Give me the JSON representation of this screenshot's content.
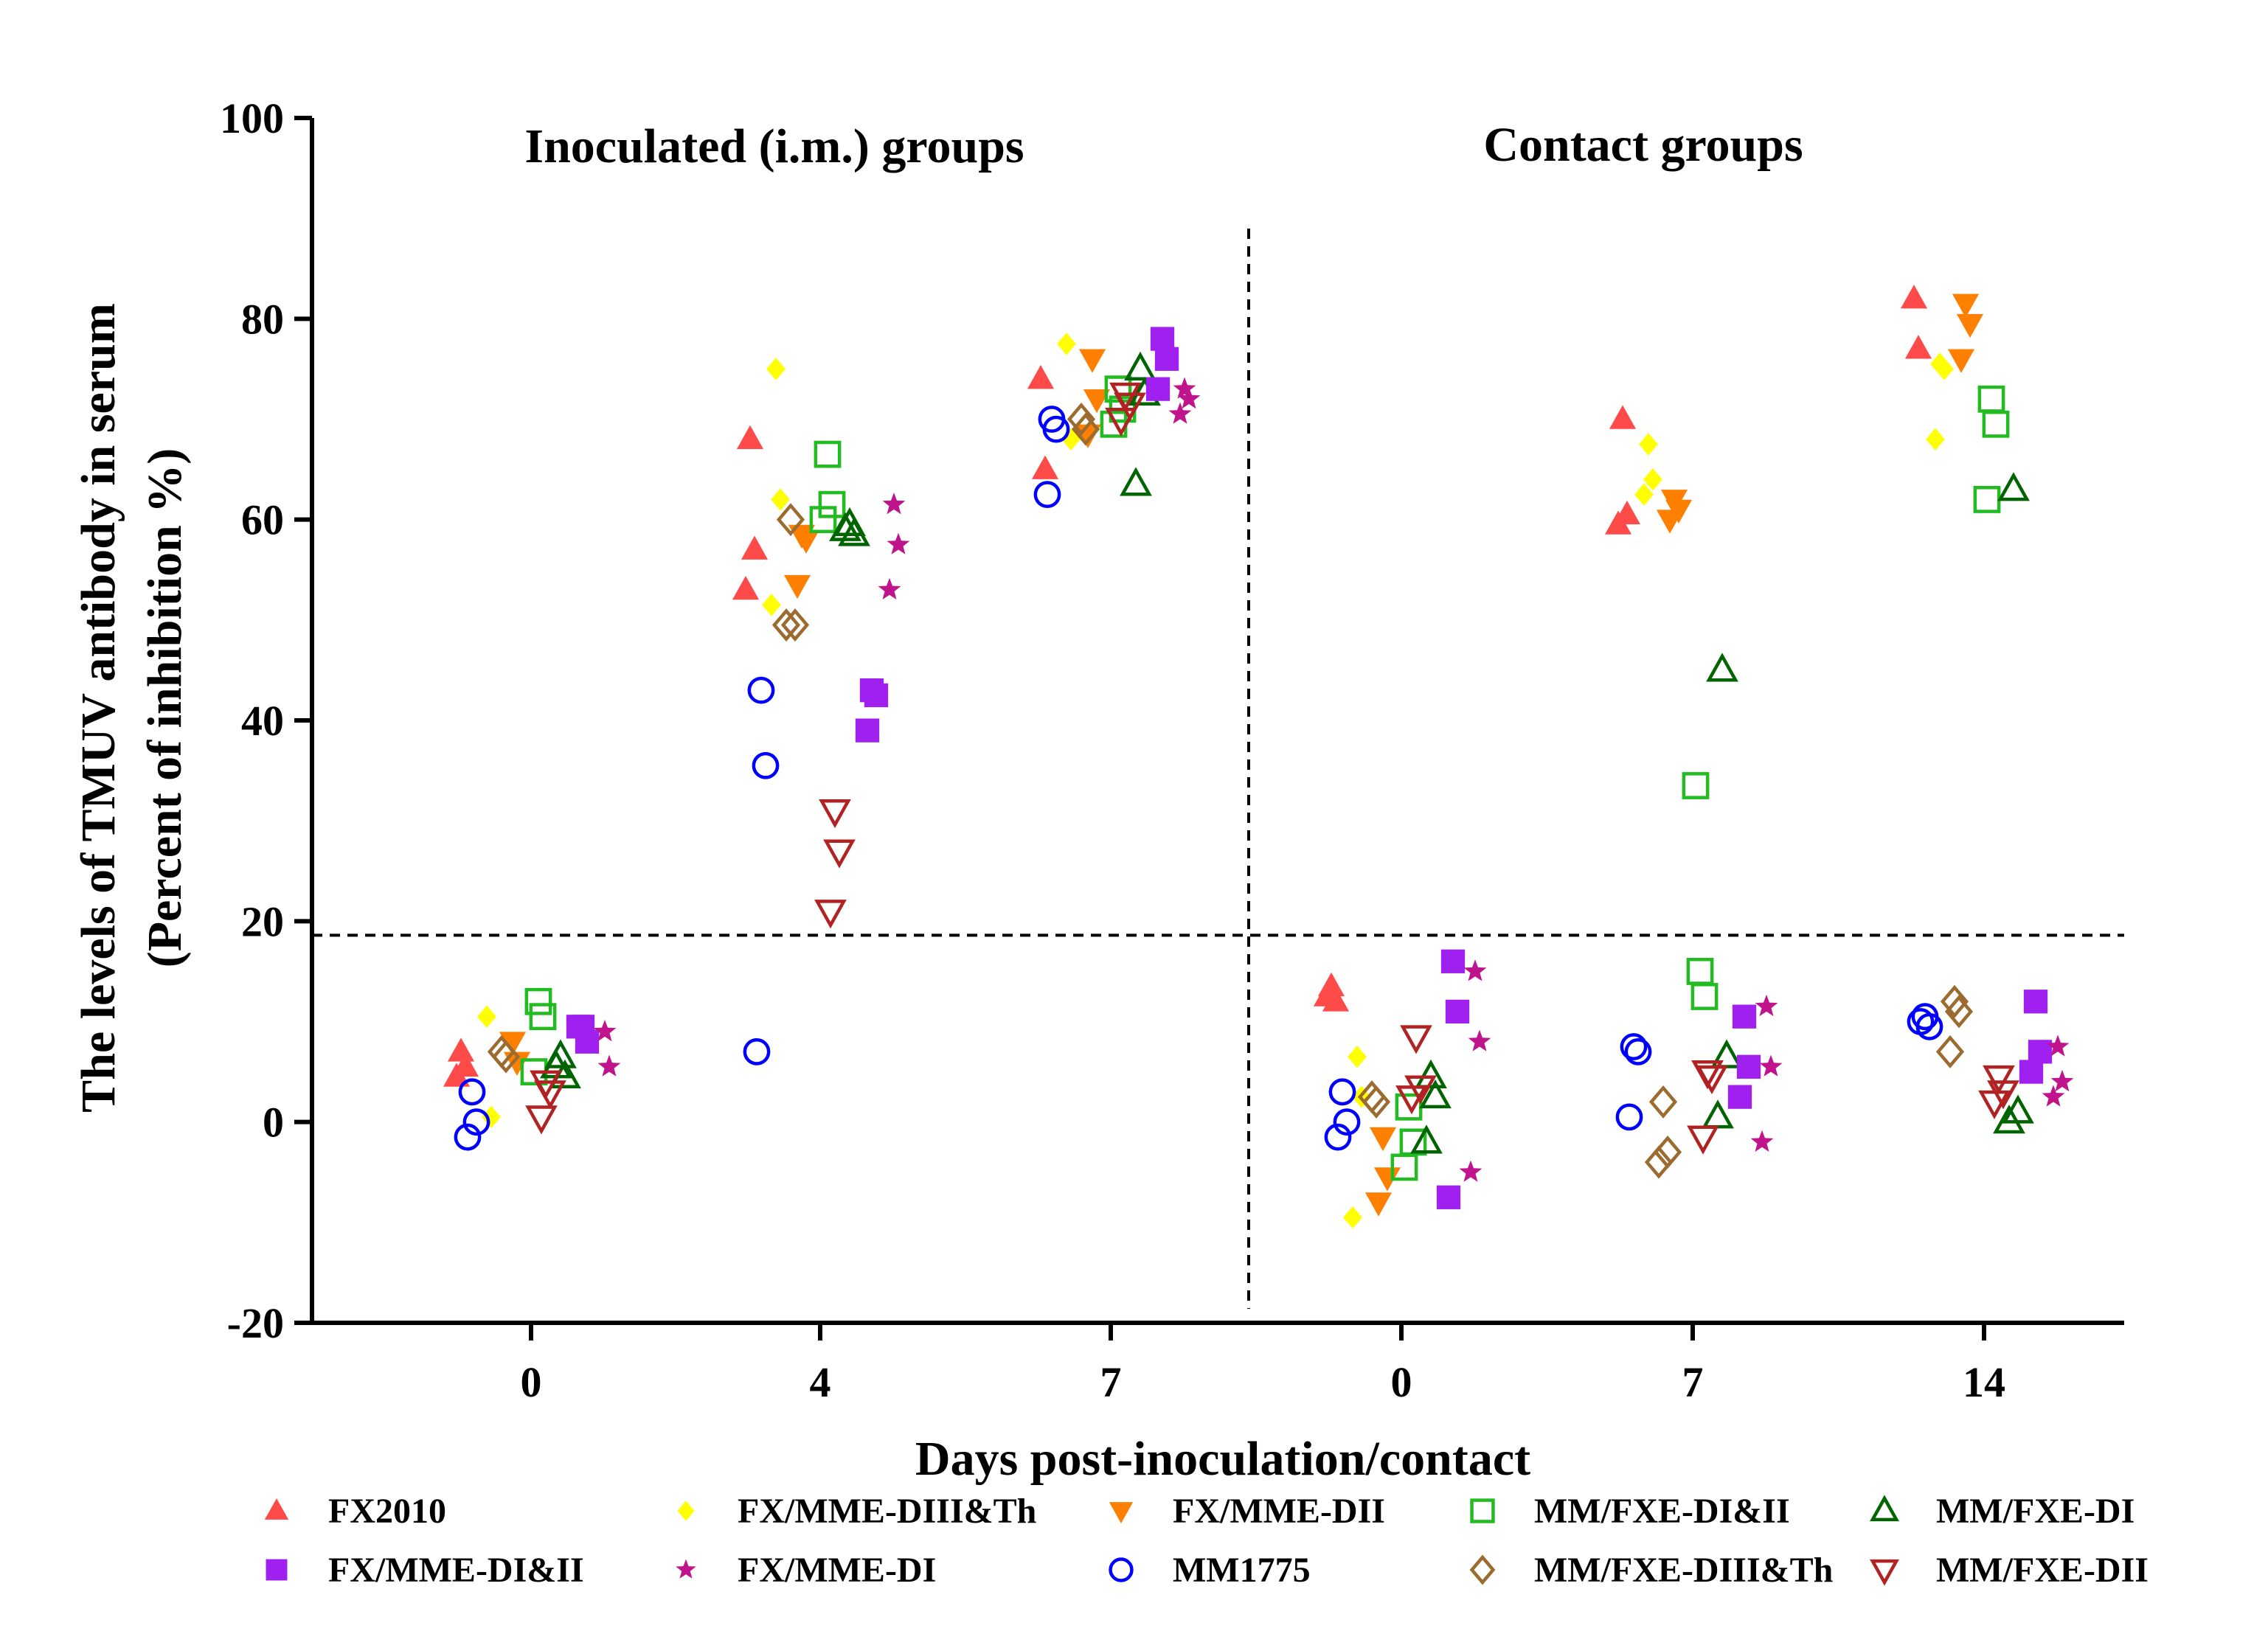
{
  "chart_data": {
    "type": "scatter",
    "title": "",
    "xlabel": "Days post-inoculation/contact",
    "ylabel_line1": "The levels of TMUV antibody in serum",
    "ylabel_line2": "(Percent of inhibition %)",
    "ylim": [
      -20,
      100
    ],
    "yticks": [
      -20,
      0,
      20,
      40,
      60,
      80,
      100
    ],
    "threshold_y": 18.6,
    "grid": false,
    "legend_position": "bottom",
    "panels": [
      {
        "title": "Inoculated (i.m.) groups",
        "categories": [
          "0",
          "4",
          "7"
        ]
      },
      {
        "title": "Contact groups",
        "categories": [
          "0",
          "7",
          "14"
        ]
      }
    ],
    "x_categories": [
      "0",
      "4",
      "7",
      "0",
      "7",
      "14"
    ],
    "series": [
      {
        "name": "FX2010",
        "marker": "triangle-up-filled",
        "color": "#ff4a4a",
        "points": [
          [
            0,
            7
          ],
          [
            0,
            5.5
          ],
          [
            0,
            4.5
          ],
          [
            1,
            68
          ],
          [
            1,
            57
          ],
          [
            1,
            53
          ],
          [
            2,
            74
          ],
          [
            2,
            65
          ],
          [
            3,
            13.5
          ],
          [
            3,
            12
          ],
          [
            3,
            12.5
          ],
          [
            4,
            70
          ],
          [
            4,
            60.5
          ],
          [
            4,
            59.5
          ],
          [
            5,
            82
          ],
          [
            5,
            77
          ]
        ]
      },
      {
        "name": "FX/MME-DIII&Th",
        "marker": "diamond-filled",
        "color": "#ffff00",
        "points": [
          [
            0,
            10.5
          ],
          [
            0,
            0.5
          ],
          [
            1,
            75
          ],
          [
            1,
            62
          ],
          [
            1,
            51.5
          ],
          [
            2,
            77.5
          ],
          [
            2,
            68
          ],
          [
            3,
            6.5
          ],
          [
            3,
            2.5
          ],
          [
            3,
            -9.5
          ],
          [
            4,
            67.5
          ],
          [
            4,
            64
          ],
          [
            4,
            62.5
          ],
          [
            5,
            75.5
          ],
          [
            5,
            75
          ],
          [
            5,
            68
          ]
        ]
      },
      {
        "name": "FX/MME-DII",
        "marker": "triangle-down-filled",
        "color": "#ff7f00",
        "points": [
          [
            0,
            8
          ],
          [
            0,
            6
          ],
          [
            1,
            58.5
          ],
          [
            1,
            58
          ],
          [
            1,
            53.5
          ],
          [
            2,
            76
          ],
          [
            2,
            72
          ],
          [
            2,
            68.5
          ],
          [
            3,
            -1.5
          ],
          [
            3,
            -5.5
          ],
          [
            3,
            -8
          ],
          [
            4,
            62
          ],
          [
            4,
            61
          ],
          [
            4,
            60
          ],
          [
            5,
            81.5
          ],
          [
            5,
            79.5
          ],
          [
            5,
            76
          ]
        ]
      },
      {
        "name": "MM/FXE-DI&II",
        "marker": "square-open",
        "color": "#22bb22",
        "points": [
          [
            0,
            12
          ],
          [
            0,
            10.5
          ],
          [
            0,
            5
          ],
          [
            1,
            66.5
          ],
          [
            1,
            61.5
          ],
          [
            1,
            60
          ],
          [
            2,
            73
          ],
          [
            2,
            71
          ],
          [
            2,
            69.5
          ],
          [
            3,
            1.5
          ],
          [
            3,
            -2
          ],
          [
            3,
            -4.5
          ],
          [
            4,
            15
          ],
          [
            4,
            12.5
          ],
          [
            4,
            33.5
          ],
          [
            5,
            72
          ],
          [
            5,
            69.5
          ],
          [
            5,
            62
          ]
        ]
      },
      {
        "name": "MM/FXE-DI",
        "marker": "triangle-up-open",
        "color": "#006400",
        "points": [
          [
            0,
            6.5
          ],
          [
            0,
            4.5
          ],
          [
            0,
            5.5
          ],
          [
            1,
            59.5
          ],
          [
            1,
            58.5
          ],
          [
            1,
            59
          ],
          [
            2,
            75
          ],
          [
            2,
            72.5
          ],
          [
            2,
            63.5
          ],
          [
            3,
            4.5
          ],
          [
            3,
            2.5
          ],
          [
            3,
            -2
          ],
          [
            4,
            45
          ],
          [
            4,
            6.5
          ],
          [
            4,
            0.5
          ],
          [
            5,
            63
          ],
          [
            5,
            1
          ],
          [
            5,
            0
          ]
        ]
      },
      {
        "name": "FX/MME-DI&II",
        "marker": "square-filled",
        "color": "#a020f0",
        "points": [
          [
            0,
            9.5
          ],
          [
            0,
            8
          ],
          [
            0,
            9.5
          ],
          [
            1,
            43
          ],
          [
            1,
            42.5
          ],
          [
            1,
            39
          ],
          [
            2,
            78
          ],
          [
            2,
            76
          ],
          [
            2,
            73
          ],
          [
            3,
            16
          ],
          [
            3,
            11
          ],
          [
            3,
            -7.5
          ],
          [
            4,
            10.5
          ],
          [
            4,
            5.5
          ],
          [
            4,
            2.5
          ],
          [
            5,
            12
          ],
          [
            5,
            7
          ],
          [
            5,
            5
          ]
        ]
      },
      {
        "name": "FX/MME-DI",
        "marker": "star-filled",
        "color": "#c0148c",
        "points": [
          [
            0,
            9
          ],
          [
            0,
            5.5
          ],
          [
            1,
            61.5
          ],
          [
            1,
            57.5
          ],
          [
            1,
            53
          ],
          [
            2,
            73
          ],
          [
            2,
            72
          ],
          [
            2,
            70.5
          ],
          [
            3,
            15
          ],
          [
            3,
            8
          ],
          [
            3,
            -5
          ],
          [
            4,
            11.5
          ],
          [
            4,
            5.5
          ],
          [
            4,
            -2
          ],
          [
            5,
            7.5
          ],
          [
            5,
            4
          ],
          [
            5,
            2.5
          ]
        ]
      },
      {
        "name": "MM1775",
        "marker": "circle-open",
        "color": "#0000ff",
        "points": [
          [
            0,
            3
          ],
          [
            0,
            0
          ],
          [
            0,
            -1.5
          ],
          [
            1,
            43
          ],
          [
            1,
            35.5
          ],
          [
            1,
            7
          ],
          [
            2,
            70
          ],
          [
            2,
            69
          ],
          [
            2,
            62.5
          ],
          [
            3,
            3
          ],
          [
            3,
            0
          ],
          [
            3,
            -1.5
          ],
          [
            4,
            7.5
          ],
          [
            4,
            7
          ],
          [
            4,
            0.5
          ],
          [
            5,
            10.5
          ],
          [
            5,
            9.5
          ],
          [
            5,
            10
          ]
        ]
      },
      {
        "name": "MM/FXE-DIII&Th",
        "marker": "diamond-open",
        "color": "#9c6b30",
        "points": [
          [
            0,
            7
          ],
          [
            0,
            6.5
          ],
          [
            1,
            60
          ],
          [
            1,
            49.5
          ],
          [
            1,
            49.5
          ],
          [
            2,
            70
          ],
          [
            2,
            69
          ],
          [
            3,
            2.5
          ],
          [
            3,
            2
          ],
          [
            4,
            2
          ],
          [
            4,
            -3
          ],
          [
            4,
            -4
          ],
          [
            5,
            12
          ],
          [
            5,
            11
          ],
          [
            5,
            7
          ]
        ]
      },
      {
        "name": "MM/FXE-DII",
        "marker": "triangle-down-open",
        "color": "#b22222",
        "points": [
          [
            0,
            4
          ],
          [
            0,
            3
          ],
          [
            0,
            0.5
          ],
          [
            1,
            31
          ],
          [
            1,
            27
          ],
          [
            1,
            21
          ],
          [
            2,
            72.5
          ],
          [
            2,
            71.5
          ],
          [
            2,
            70
          ],
          [
            3,
            8.5
          ],
          [
            3,
            3.5
          ],
          [
            3,
            2.5
          ],
          [
            4,
            5
          ],
          [
            4,
            4.5
          ],
          [
            4,
            -1.5
          ],
          [
            5,
            4.5
          ],
          [
            5,
            3
          ],
          [
            5,
            2
          ]
        ]
      }
    ]
  }
}
